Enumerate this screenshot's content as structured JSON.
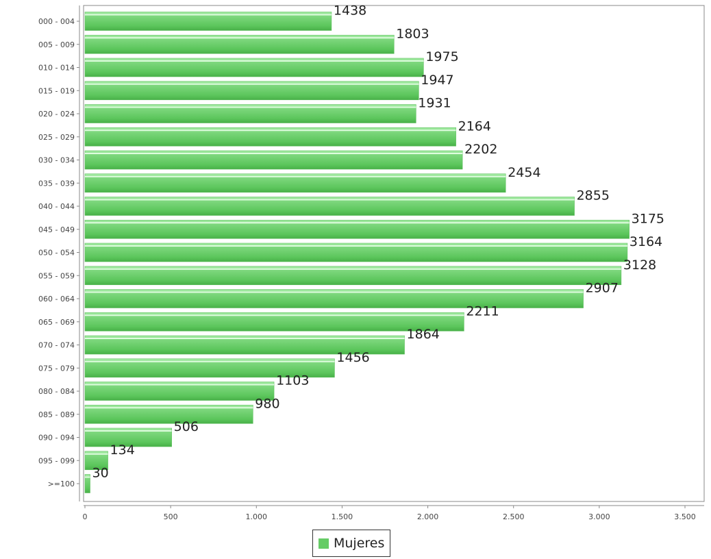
{
  "chart_data": {
    "type": "bar",
    "orientation": "horizontal",
    "categories": [
      "000 - 004",
      "005 - 009",
      "010 - 014",
      "015 - 019",
      "020 - 024",
      "025 - 029",
      "030 - 034",
      "035 - 039",
      "040 - 044",
      "045 - 049",
      "050 - 054",
      "055 - 059",
      "060 - 064",
      "065 - 069",
      "070 - 074",
      "075 - 079",
      "080 - 084",
      "085 - 089",
      "090 - 094",
      "095 - 099",
      ">=100"
    ],
    "series": [
      {
        "name": "Mujeres",
        "values": [
          1438,
          1803,
          1975,
          1947,
          1931,
          2164,
          2202,
          2454,
          2855,
          3175,
          3164,
          3128,
          2907,
          2211,
          1864,
          1456,
          1103,
          980,
          506,
          134,
          30
        ]
      }
    ],
    "xlim": [
      0,
      3600
    ],
    "xticks": [
      0,
      500,
      1000,
      1500,
      2000,
      2500,
      3000,
      3500
    ],
    "xtick_labels": [
      "0",
      "500",
      "1.000",
      "1.500",
      "2.000",
      "2.500",
      "3.000",
      "3.500"
    ],
    "title": "",
    "xlabel": "",
    "ylabel": "",
    "legend": {
      "position": "bottom-center"
    },
    "grid": false,
    "colors": {
      "bar": "#66cc66",
      "bar_light": "#a8eea8",
      "bar_dark": "#48b048",
      "frame": "#888888"
    }
  }
}
